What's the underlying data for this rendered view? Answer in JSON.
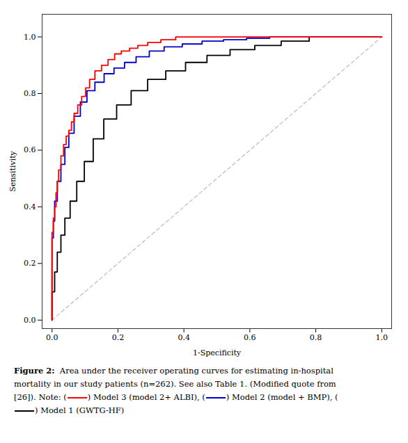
{
  "chart_data": {
    "type": "line",
    "xlabel": "1-Specificity",
    "ylabel": "Sensitivity",
    "xlim": [
      -0.03,
      1.03
    ],
    "ylim": [
      -0.03,
      1.08
    ],
    "xticks": [
      {
        "value": 0,
        "label": "0.0"
      },
      0.2,
      0.4,
      0.6,
      0.8,
      {
        "value": 1.0,
        "label": "1.0"
      }
    ],
    "yticks": [
      {
        "value": 0,
        "label": "0.0"
      },
      0.2,
      0.4,
      0.6,
      0.8,
      {
        "value": 1.0,
        "label": "1.0"
      }
    ],
    "grid": false,
    "series": [
      {
        "color": "#bbbbbb",
        "line_style": "dashed",
        "x": [
          0,
          1
        ],
        "values": [
          0,
          1
        ]
      },
      {
        "color": "#000000",
        "line_style": "solid",
        "x": [
          0.0,
          0.0,
          0.008,
          0.008,
          0.016,
          0.016,
          0.027,
          0.027,
          0.039,
          0.039,
          0.055,
          0.055,
          0.075,
          0.075,
          0.098,
          0.098,
          0.125,
          0.125,
          0.157,
          0.157,
          0.196,
          0.196,
          0.24,
          0.24,
          0.29,
          0.29,
          0.345,
          0.345,
          0.405,
          0.405,
          0.47,
          0.47,
          0.54,
          0.54,
          0.615,
          0.615,
          0.695,
          0.695,
          0.78,
          0.78,
          1.0
        ],
        "values": [
          0.0,
          0.1,
          0.1,
          0.17,
          0.17,
          0.24,
          0.24,
          0.3,
          0.3,
          0.36,
          0.36,
          0.42,
          0.42,
          0.49,
          0.49,
          0.56,
          0.56,
          0.64,
          0.64,
          0.71,
          0.71,
          0.76,
          0.76,
          0.81,
          0.81,
          0.85,
          0.85,
          0.88,
          0.88,
          0.91,
          0.91,
          0.935,
          0.935,
          0.955,
          0.955,
          0.97,
          0.97,
          0.985,
          0.985,
          1.0,
          1.0
        ]
      },
      {
        "color": "#0000cc",
        "line_style": "solid",
        "x": [
          0.0,
          0.0,
          0.004,
          0.004,
          0.008,
          0.008,
          0.016,
          0.016,
          0.027,
          0.027,
          0.039,
          0.039,
          0.051,
          0.051,
          0.067,
          0.067,
          0.086,
          0.086,
          0.106,
          0.106,
          0.13,
          0.13,
          0.158,
          0.158,
          0.188,
          0.188,
          0.22,
          0.22,
          0.255,
          0.255,
          0.295,
          0.295,
          0.34,
          0.34,
          0.395,
          0.395,
          0.455,
          0.455,
          0.52,
          0.52,
          0.59,
          0.59,
          0.66,
          0.66,
          1.0
        ],
        "values": [
          0.0,
          0.29,
          0.29,
          0.35,
          0.35,
          0.42,
          0.42,
          0.49,
          0.49,
          0.55,
          0.55,
          0.61,
          0.61,
          0.66,
          0.66,
          0.72,
          0.72,
          0.77,
          0.77,
          0.81,
          0.81,
          0.84,
          0.84,
          0.87,
          0.87,
          0.89,
          0.89,
          0.91,
          0.91,
          0.93,
          0.93,
          0.95,
          0.95,
          0.965,
          0.965,
          0.975,
          0.975,
          0.985,
          0.985,
          0.99,
          0.99,
          0.995,
          0.995,
          1.0,
          1.0
        ]
      },
      {
        "color": "#ff0000",
        "line_style": "solid",
        "x": [
          0.0,
          0.0,
          0.004,
          0.004,
          0.008,
          0.008,
          0.012,
          0.012,
          0.016,
          0.016,
          0.02,
          0.02,
          0.027,
          0.027,
          0.035,
          0.035,
          0.043,
          0.043,
          0.051,
          0.051,
          0.059,
          0.059,
          0.067,
          0.067,
          0.078,
          0.078,
          0.09,
          0.09,
          0.102,
          0.102,
          0.114,
          0.114,
          0.13,
          0.13,
          0.15,
          0.15,
          0.17,
          0.17,
          0.19,
          0.19,
          0.21,
          0.21,
          0.235,
          0.235,
          0.26,
          0.26,
          0.29,
          0.29,
          0.33,
          0.33,
          0.375,
          0.375,
          0.43,
          0.43,
          0.49,
          0.49,
          0.56,
          0.56,
          0.64,
          0.64,
          1.0
        ],
        "values": [
          0.0,
          0.31,
          0.31,
          0.36,
          0.36,
          0.4,
          0.4,
          0.45,
          0.45,
          0.49,
          0.49,
          0.53,
          0.53,
          0.58,
          0.58,
          0.62,
          0.62,
          0.65,
          0.65,
          0.67,
          0.67,
          0.7,
          0.7,
          0.73,
          0.73,
          0.76,
          0.76,
          0.79,
          0.79,
          0.82,
          0.82,
          0.85,
          0.85,
          0.88,
          0.88,
          0.9,
          0.9,
          0.92,
          0.92,
          0.94,
          0.94,
          0.95,
          0.95,
          0.96,
          0.96,
          0.97,
          0.97,
          0.98,
          0.98,
          0.99,
          0.99,
          1.0,
          1.0,
          1.0,
          1.0,
          1.0,
          1.0,
          1.0,
          1.0,
          1.0,
          1.0
        ]
      }
    ],
    "caption": [
      "Figure 2:  Area under the receiver operating curves for estimating in-hospital",
      "mortality in our study patients (n=262). See also Table 1. (Modified quote from",
      "[26]). Note: () Model 3 (model 2+ ALBI), () Model 2 (model + BMP), (",
      ") Model 1 (GWTG-HF)"
    ]
  }
}
